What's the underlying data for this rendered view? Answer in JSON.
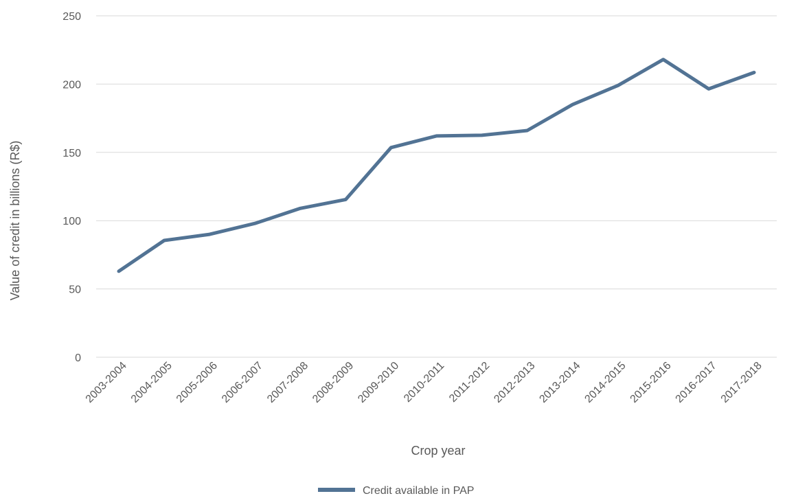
{
  "chart_data": {
    "type": "line",
    "title": "",
    "xlabel": "Crop year",
    "ylabel": "Value of credit in billions (R$)",
    "ylim": [
      0,
      250
    ],
    "yticks": [
      0,
      50,
      100,
      150,
      200,
      250
    ],
    "grid": "horizontal",
    "legend_position": "bottom",
    "categories": [
      "2003-2004",
      "2004-2005",
      "2005-2006",
      "2006-2007",
      "2007-2008",
      "2008-2009",
      "2009-2010",
      "2010-2011",
      "2011-2012",
      "2012-2013",
      "2013-2014",
      "2014-2015",
      "2015-2016",
      "2016-2017",
      "2017-2018"
    ],
    "series": [
      {
        "name": "Credit available in PAP",
        "color": "#527394",
        "values": [
          63,
          85.5,
          90,
          98,
          109,
          115.5,
          153.5,
          162,
          162.5,
          166,
          185,
          199,
          218,
          196.5,
          208.5
        ]
      }
    ]
  }
}
